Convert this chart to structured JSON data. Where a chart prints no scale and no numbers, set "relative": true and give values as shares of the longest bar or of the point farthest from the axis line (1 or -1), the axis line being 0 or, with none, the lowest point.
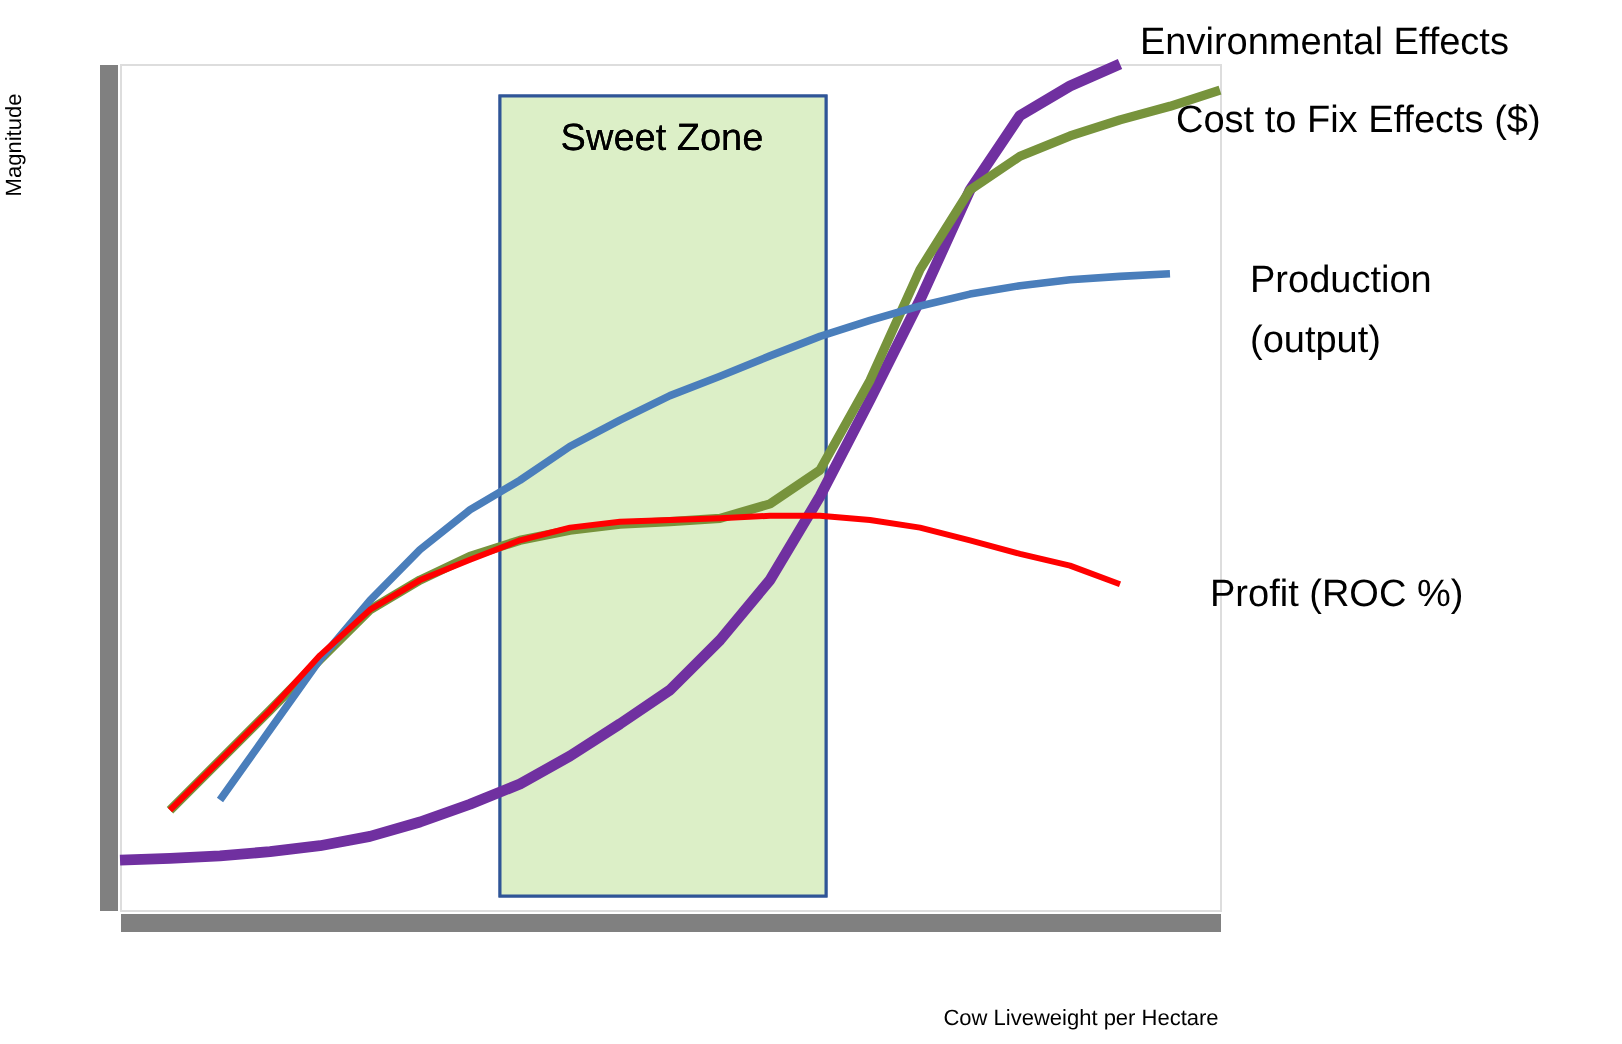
{
  "chart_data": {
    "type": "line",
    "relative": true,
    "xlabel": "Cow Liveweight per Hectare",
    "ylabel": "Magnitude",
    "legend": false,
    "marker": "none",
    "annotations": [
      "Sweet Zone"
    ],
    "line_style": "solid",
    "categories": [
      null,
      null,
      null,
      null,
      null,
      null,
      null,
      null,
      null,
      null,
      null,
      null,
      null,
      null,
      null,
      null,
      null,
      null,
      null,
      null,
      null,
      null,
      null
    ],
    "series": [
      {
        "name": "Environmental Effects",
        "color": "#7030a0",
        "values": [
          0.059,
          0.061,
          0.064,
          0.069,
          0.076,
          0.087,
          0.104,
          0.125,
          0.149,
          0.182,
          0.22,
          0.26,
          0.319,
          0.39,
          0.489,
          0.603,
          0.721,
          0.851,
          0.939,
          0.974,
          1,
          null,
          null
        ]
      },
      {
        "name": "Cost to Fix Effects ($)",
        "color": "#77933c",
        "values": [
          null,
          0.118,
          0.177,
          0.236,
          0.296,
          0.355,
          0.39,
          0.418,
          0.437,
          0.449,
          0.456,
          0.459,
          0.463,
          0.48,
          0.52,
          0.626,
          0.757,
          0.851,
          0.891,
          0.915,
          0.934,
          0.95,
          0.969
        ]
      },
      {
        "name": "Production (output)",
        "color": "#4a7ebb",
        "values": [
          null,
          null,
          0.13,
          0.213,
          0.296,
          0.366,
          0.426,
          0.473,
          0.508,
          0.548,
          0.579,
          0.608,
          0.631,
          0.655,
          0.678,
          0.697,
          0.714,
          0.728,
          0.738,
          0.745,
          0.749,
          0.752,
          null
        ]
      },
      {
        "name": "Profit (ROC %)",
        "color": "#ff0000",
        "values": [
          null,
          0.118,
          0.177,
          0.236,
          0.301,
          0.355,
          0.39,
          0.414,
          0.437,
          0.452,
          0.459,
          0.461,
          0.463,
          0.466,
          0.466,
          0.461,
          0.452,
          0.437,
          0.421,
          0.407,
          0.385,
          null,
          null
        ]
      }
    ]
  }
}
